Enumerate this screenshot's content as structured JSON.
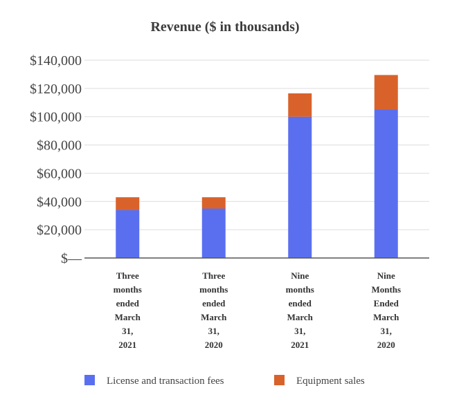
{
  "chart_data": {
    "type": "bar",
    "stacked": true,
    "title": "Revenue ($ in thousands)",
    "categories": [
      [
        "Three",
        "months",
        "ended",
        "March",
        "31,",
        "2021"
      ],
      [
        "Three",
        "months",
        "ended",
        "March",
        "31,",
        "2020"
      ],
      [
        "Nine",
        "months",
        "ended",
        "March",
        "31,",
        "2021"
      ],
      [
        "Nine",
        "Months",
        "Ended",
        "March",
        "31,",
        "2020"
      ]
    ],
    "series": [
      {
        "name": "License and transaction fees",
        "color": "#5a6ff0",
        "values": [
          34000,
          35000,
          100000,
          105000
        ]
      },
      {
        "name": "Equipment sales",
        "color": "#d9622b",
        "values": [
          9000,
          8000,
          16500,
          24500
        ]
      }
    ],
    "ylim": [
      0,
      140000
    ],
    "yticks": [
      0,
      20000,
      40000,
      60000,
      80000,
      100000,
      120000,
      140000
    ],
    "ytick_labels": [
      "$—",
      "$20,000",
      "$40,000",
      "$60,000",
      "$80,000",
      "$100,000",
      "$120,000",
      "$140,000"
    ],
    "grid": true,
    "legend_position": "bottom"
  }
}
